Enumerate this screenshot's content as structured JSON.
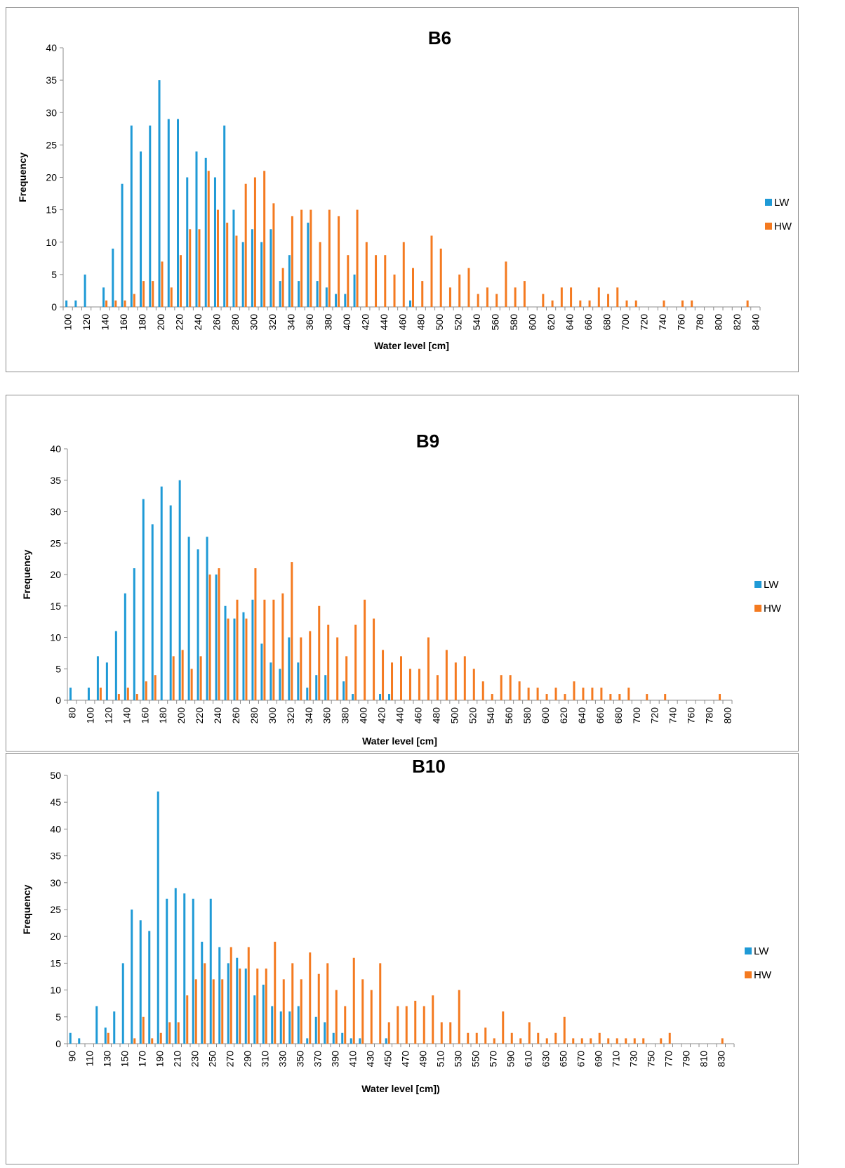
{
  "colors": {
    "LW": "#1f9ad6",
    "HW": "#f47a20",
    "axis": "#8c8c8c"
  },
  "chart_data": [
    {
      "type": "bar",
      "title": "B6",
      "xlabel": "Water level [cm]",
      "ylabel": "Frequency",
      "ylim": [
        0,
        40
      ],
      "yticks": [
        0,
        5,
        10,
        15,
        20,
        25,
        30,
        35,
        40
      ],
      "xrange": [
        100,
        850
      ],
      "xstep": 10,
      "xticks": [
        100,
        120,
        140,
        160,
        180,
        200,
        220,
        240,
        260,
        280,
        300,
        320,
        340,
        360,
        380,
        400,
        420,
        440,
        460,
        480,
        500,
        520,
        540,
        560,
        580,
        600,
        620,
        640,
        660,
        680,
        700,
        720,
        740,
        760,
        780,
        800,
        820,
        840
      ],
      "legend_position": "right",
      "series": [
        {
          "name": "LW",
          "x": [
            100,
            110,
            120,
            140,
            150,
            160,
            170,
            180,
            190,
            200,
            210,
            220,
            230,
            240,
            250,
            260,
            270,
            280,
            290,
            300,
            310,
            320,
            330,
            340,
            350,
            360,
            370,
            380,
            390,
            400,
            410,
            470
          ],
          "values": [
            1,
            1,
            5,
            3,
            9,
            19,
            28,
            24,
            28,
            35,
            29,
            29,
            20,
            24,
            23,
            20,
            28,
            15,
            10,
            12,
            10,
            12,
            4,
            8,
            4,
            13,
            4,
            3,
            2,
            2,
            5,
            1
          ]
        },
        {
          "name": "HW",
          "x": [
            140,
            150,
            160,
            170,
            180,
            190,
            200,
            210,
            220,
            230,
            240,
            250,
            260,
            270,
            280,
            290,
            300,
            310,
            320,
            330,
            340,
            350,
            360,
            370,
            380,
            390,
            400,
            410,
            420,
            430,
            440,
            450,
            460,
            470,
            480,
            490,
            500,
            510,
            520,
            530,
            540,
            550,
            560,
            570,
            580,
            590,
            610,
            620,
            630,
            640,
            650,
            660,
            670,
            680,
            690,
            700,
            710,
            740,
            760,
            770,
            830
          ],
          "values": [
            1,
            1,
            1,
            2,
            4,
            4,
            7,
            3,
            8,
            12,
            12,
            21,
            15,
            13,
            11,
            19,
            20,
            21,
            16,
            6,
            14,
            15,
            15,
            10,
            15,
            14,
            8,
            15,
            10,
            8,
            8,
            5,
            10,
            6,
            4,
            11,
            9,
            3,
            5,
            6,
            2,
            3,
            2,
            7,
            3,
            4,
            2,
            1,
            3,
            3,
            1,
            1,
            3,
            2,
            3,
            1,
            1,
            1,
            1,
            1,
            1
          ]
        }
      ]
    },
    {
      "type": "bar",
      "title": "B9",
      "xlabel": "Water level [cm]",
      "ylabel": "Frequency",
      "ylim": [
        0,
        40
      ],
      "yticks": [
        0,
        5,
        10,
        15,
        20,
        25,
        30,
        35,
        40
      ],
      "xrange": [
        80,
        810
      ],
      "xstep": 10,
      "xticks": [
        80,
        100,
        120,
        140,
        160,
        180,
        200,
        220,
        240,
        260,
        280,
        300,
        320,
        340,
        360,
        380,
        400,
        420,
        440,
        460,
        480,
        500,
        520,
        540,
        560,
        580,
        600,
        620,
        640,
        660,
        680,
        700,
        720,
        740,
        760,
        780,
        800
      ],
      "legend_position": "right",
      "series": [
        {
          "name": "LW",
          "x": [
            80,
            100,
            110,
            120,
            130,
            140,
            150,
            160,
            170,
            180,
            190,
            200,
            210,
            220,
            230,
            240,
            250,
            260,
            270,
            280,
            290,
            300,
            310,
            320,
            330,
            340,
            350,
            360,
            380,
            390,
            420,
            430
          ],
          "values": [
            2,
            2,
            7,
            6,
            11,
            17,
            21,
            32,
            28,
            34,
            31,
            35,
            26,
            24,
            26,
            20,
            15,
            13,
            14,
            16,
            9,
            6,
            5,
            10,
            6,
            2,
            4,
            4,
            3,
            1,
            1,
            1
          ]
        },
        {
          "name": "HW",
          "x": [
            110,
            130,
            140,
            150,
            160,
            170,
            190,
            200,
            210,
            220,
            230,
            240,
            250,
            260,
            270,
            280,
            290,
            300,
            310,
            320,
            330,
            340,
            350,
            360,
            370,
            380,
            390,
            400,
            410,
            420,
            430,
            440,
            450,
            460,
            470,
            480,
            490,
            500,
            510,
            520,
            530,
            540,
            550,
            560,
            570,
            580,
            590,
            600,
            610,
            620,
            630,
            640,
            650,
            660,
            670,
            680,
            690,
            710,
            730,
            790
          ],
          "values": [
            2,
            1,
            2,
            1,
            3,
            4,
            7,
            8,
            5,
            7,
            20,
            21,
            13,
            16,
            13,
            21,
            16,
            16,
            17,
            22,
            10,
            11,
            15,
            12,
            10,
            7,
            12,
            16,
            13,
            8,
            6,
            7,
            5,
            5,
            10,
            4,
            8,
            6,
            7,
            5,
            3,
            1,
            4,
            4,
            3,
            2,
            2,
            1,
            2,
            1,
            3,
            2,
            2,
            2,
            1,
            1,
            2,
            1,
            1,
            1
          ]
        }
      ]
    },
    {
      "type": "bar",
      "title": "B10",
      "xlabel": "Water level [cm])",
      "ylabel": "Frequency",
      "ylim": [
        0,
        50
      ],
      "yticks": [
        0,
        5,
        10,
        15,
        20,
        25,
        30,
        35,
        40,
        45,
        50
      ],
      "xrange": [
        90,
        850
      ],
      "xstep": 10,
      "xticks": [
        90,
        110,
        130,
        150,
        170,
        190,
        210,
        230,
        250,
        270,
        290,
        310,
        330,
        350,
        370,
        390,
        410,
        430,
        450,
        470,
        490,
        510,
        530,
        550,
        570,
        590,
        610,
        630,
        650,
        670,
        690,
        710,
        730,
        750,
        770,
        790,
        810,
        830
      ],
      "legend_position": "right",
      "series": [
        {
          "name": "LW",
          "x": [
            90,
            100,
            120,
            130,
            140,
            150,
            160,
            170,
            180,
            190,
            200,
            210,
            220,
            230,
            240,
            250,
            260,
            270,
            280,
            290,
            300,
            310,
            320,
            330,
            340,
            350,
            360,
            370,
            380,
            390,
            400,
            410,
            420,
            450
          ],
          "values": [
            2,
            1,
            7,
            3,
            6,
            15,
            25,
            23,
            21,
            47,
            27,
            29,
            28,
            27,
            19,
            27,
            18,
            15,
            16,
            14,
            9,
            11,
            7,
            6,
            6,
            7,
            1,
            5,
            4,
            2,
            2,
            1,
            1,
            1
          ]
        },
        {
          "name": "HW",
          "x": [
            130,
            160,
            170,
            180,
            190,
            200,
            210,
            220,
            230,
            240,
            250,
            260,
            270,
            280,
            290,
            300,
            310,
            320,
            330,
            340,
            350,
            360,
            370,
            380,
            390,
            400,
            410,
            420,
            430,
            440,
            450,
            460,
            470,
            480,
            490,
            500,
            510,
            520,
            530,
            540,
            550,
            560,
            570,
            580,
            590,
            600,
            610,
            620,
            630,
            640,
            650,
            660,
            670,
            680,
            690,
            700,
            710,
            720,
            730,
            740,
            760,
            770,
            830
          ],
          "values": [
            2,
            1,
            5,
            1,
            2,
            4,
            4,
            9,
            12,
            15,
            12,
            12,
            18,
            14,
            18,
            14,
            14,
            19,
            12,
            15,
            12,
            17,
            13,
            15,
            10,
            7,
            16,
            12,
            10,
            15,
            4,
            7,
            7,
            8,
            7,
            9,
            4,
            4,
            10,
            2,
            2,
            3,
            1,
            6,
            2,
            1,
            4,
            2,
            1,
            2,
            5,
            1,
            1,
            1,
            2,
            1,
            1,
            1,
            1,
            1,
            1,
            2,
            1
          ]
        }
      ]
    }
  ]
}
